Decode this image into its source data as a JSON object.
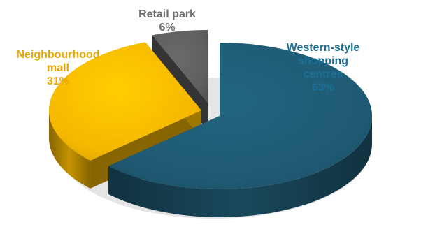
{
  "chart_data": {
    "type": "pie",
    "style": "3d-exploded",
    "title": "",
    "legend": "none",
    "slices": [
      {
        "label_lines": [
          "Western-style",
          "shopping",
          "centres"
        ],
        "value": 63,
        "value_label": "63%",
        "color": "#1f5a73",
        "label_color": "#1b6f95"
      },
      {
        "label_lines": [
          "Neighbourhood",
          "mall"
        ],
        "value": 31,
        "value_label": "31%",
        "color": "#f5b800",
        "label_color": "#e9a800"
      },
      {
        "label_lines": [
          "Retail park"
        ],
        "value": 6,
        "value_label": "6%",
        "color": "#5f5f5f",
        "label_color": "#6d6d6d"
      }
    ]
  }
}
